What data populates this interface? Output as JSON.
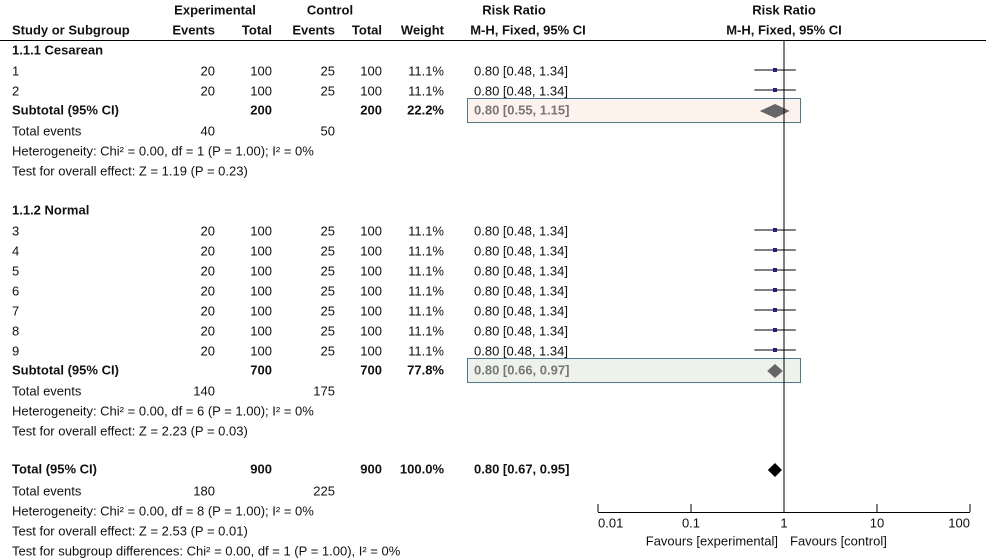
{
  "chart_data": {
    "type": "forest",
    "header": {
      "experimental": "Experimental",
      "control": "Control",
      "ratio_group": "Risk Ratio",
      "plot_group": "Risk Ratio",
      "study": "Study or Subgroup",
      "exp_events": "Events",
      "exp_total": "Total",
      "ctl_events": "Events",
      "ctl_total": "Total",
      "weight": "Weight",
      "ratio_method": "M-H, Fixed, 95% CI",
      "plot_method": "M-H, Fixed, 95% CI"
    },
    "groups": [
      {
        "name": "1.1.1 Cesarean",
        "studies": [
          {
            "name": "1",
            "exp_events": 20,
            "exp_total": 100,
            "ctl_events": 25,
            "ctl_total": 100,
            "weight": 11.1,
            "weight_label": "11.1%",
            "ratio": 0.8,
            "lower": 0.48,
            "upper": 1.34,
            "ci_label": "0.80 [0.48, 1.34]"
          },
          {
            "name": "2",
            "exp_events": 20,
            "exp_total": 100,
            "ctl_events": 25,
            "ctl_total": 100,
            "weight": 11.1,
            "weight_label": "11.1%",
            "ratio": 0.8,
            "lower": 0.48,
            "upper": 1.34,
            "ci_label": "0.80 [0.48, 1.34]"
          }
        ],
        "subtotal": {
          "name": "Subtotal (95% CI)",
          "exp_total": 200,
          "ctl_total": 200,
          "weight": 22.2,
          "weight_label": "22.2%",
          "ratio": 0.8,
          "lower": 0.55,
          "upper": 1.15,
          "ci_label": "0.80 [0.55, 1.15]"
        },
        "total_events": {
          "name": "Total events",
          "exp": 40,
          "ctl": 50
        },
        "heterogeneity": "Heterogeneity: Chi² = 0.00, df = 1 (P = 1.00); I² = 0%",
        "overall_effect": "Test for overall effect: Z = 1.19 (P = 0.23)"
      },
      {
        "name": "1.1.2 Normal",
        "studies": [
          {
            "name": "3",
            "exp_events": 20,
            "exp_total": 100,
            "ctl_events": 25,
            "ctl_total": 100,
            "weight": 11.1,
            "weight_label": "11.1%",
            "ratio": 0.8,
            "lower": 0.48,
            "upper": 1.34,
            "ci_label": "0.80 [0.48, 1.34]"
          },
          {
            "name": "4",
            "exp_events": 20,
            "exp_total": 100,
            "ctl_events": 25,
            "ctl_total": 100,
            "weight": 11.1,
            "weight_label": "11.1%",
            "ratio": 0.8,
            "lower": 0.48,
            "upper": 1.34,
            "ci_label": "0.80 [0.48, 1.34]"
          },
          {
            "name": "5",
            "exp_events": 20,
            "exp_total": 100,
            "ctl_events": 25,
            "ctl_total": 100,
            "weight": 11.1,
            "weight_label": "11.1%",
            "ratio": 0.8,
            "lower": 0.48,
            "upper": 1.34,
            "ci_label": "0.80 [0.48, 1.34]"
          },
          {
            "name": "6",
            "exp_events": 20,
            "exp_total": 100,
            "ctl_events": 25,
            "ctl_total": 100,
            "weight": 11.1,
            "weight_label": "11.1%",
            "ratio": 0.8,
            "lower": 0.48,
            "upper": 1.34,
            "ci_label": "0.80 [0.48, 1.34]"
          },
          {
            "name": "7",
            "exp_events": 20,
            "exp_total": 100,
            "ctl_events": 25,
            "ctl_total": 100,
            "weight": 11.1,
            "weight_label": "11.1%",
            "ratio": 0.8,
            "lower": 0.48,
            "upper": 1.34,
            "ci_label": "0.80 [0.48, 1.34]"
          },
          {
            "name": "8",
            "exp_events": 20,
            "exp_total": 100,
            "ctl_events": 25,
            "ctl_total": 100,
            "weight": 11.1,
            "weight_label": "11.1%",
            "ratio": 0.8,
            "lower": 0.48,
            "upper": 1.34,
            "ci_label": "0.80 [0.48, 1.34]"
          },
          {
            "name": "9",
            "exp_events": 20,
            "exp_total": 100,
            "ctl_events": 25,
            "ctl_total": 100,
            "weight": 11.1,
            "weight_label": "11.1%",
            "ratio": 0.8,
            "lower": 0.48,
            "upper": 1.34,
            "ci_label": "0.80 [0.48, 1.34]"
          }
        ],
        "subtotal": {
          "name": "Subtotal (95% CI)",
          "exp_total": 700,
          "ctl_total": 700,
          "weight": 77.8,
          "weight_label": "77.8%",
          "ratio": 0.8,
          "lower": 0.66,
          "upper": 0.97,
          "ci_label": "0.80 [0.66, 0.97]"
        },
        "total_events": {
          "name": "Total events",
          "exp": 140,
          "ctl": 175
        },
        "heterogeneity": "Heterogeneity: Chi² = 0.00, df = 6 (P = 1.00); I² = 0%",
        "overall_effect": "Test for overall effect: Z = 2.23 (P = 0.03)"
      }
    ],
    "total": {
      "name": "Total (95% CI)",
      "exp_total": 900,
      "ctl_total": 900,
      "weight": 100.0,
      "weight_label": "100.0%",
      "ratio": 0.8,
      "lower": 0.67,
      "upper": 0.95,
      "ci_label": "0.80 [0.67, 0.95]"
    },
    "total_events": {
      "name": "Total events",
      "exp": 180,
      "ctl": 225
    },
    "heterogeneity": "Heterogeneity: Chi² = 0.00, df = 8 (P = 1.00); I² = 0%",
    "overall_effect": "Test for overall effect: Z = 2.53 (P = 0.01)",
    "subgroup_differences": "Test for subgroup differences: Chi² = 0.00, df = 1 (P = 1.00), I² = 0%",
    "xlim": [
      0.01,
      100
    ],
    "xticks": [
      0.01,
      0.1,
      1,
      10,
      100
    ],
    "log_scale": true,
    "null_value": 1,
    "favours_left": "Favours [experimental]",
    "favours_right": "Favours [control]",
    "square_color": "#1f1f8f",
    "subtotal_diamond_color": "#666666",
    "total_diamond_color": "#000000",
    "subtotal_box_colors": [
      "#fdf2ec",
      "#eef2ea"
    ]
  }
}
